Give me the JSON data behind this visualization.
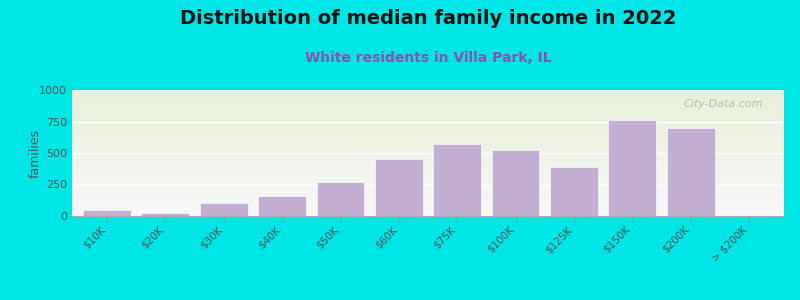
{
  "title": "Distribution of median family income in 2022",
  "subtitle": "White residents in Villa Park, IL",
  "categories": [
    "$10K",
    "$20K",
    "$30K",
    "$40K",
    "$50K",
    "$60K",
    "$75K",
    "$100K",
    "$125K",
    "$150K",
    "$200K",
    "> $200K"
  ],
  "values": [
    50,
    20,
    105,
    155,
    270,
    450,
    570,
    520,
    385,
    760,
    700,
    0
  ],
  "bar_color": "#c4afd4",
  "background_color": "#00e5e5",
  "plot_bg_top": "#e8f0da",
  "plot_bg_bottom": "#f8f8f8",
  "ylabel": "families",
  "ylim": [
    0,
    1000
  ],
  "yticks": [
    0,
    250,
    500,
    750,
    1000
  ],
  "title_fontsize": 14,
  "subtitle_fontsize": 10,
  "subtitle_color": "#8855aa",
  "watermark": "City-Data.com",
  "grid_color": "#dddddd"
}
